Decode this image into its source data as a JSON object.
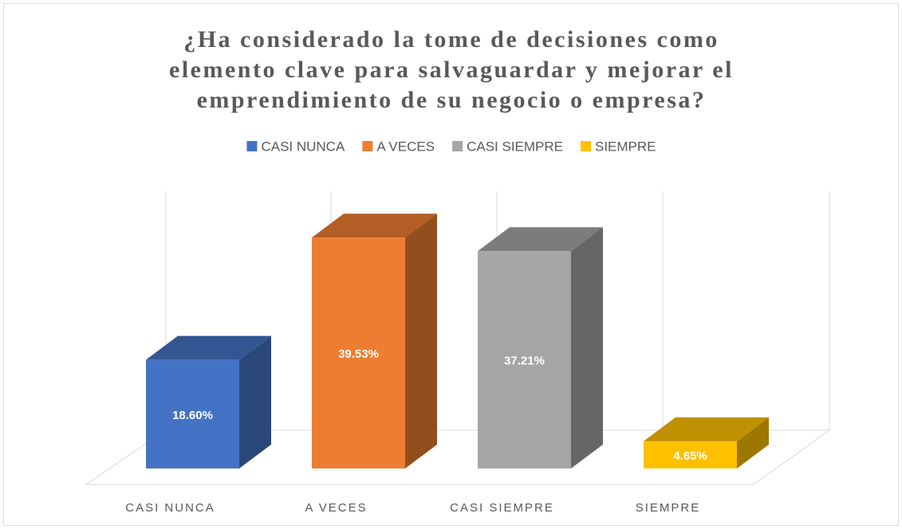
{
  "chart_data": {
    "type": "bar3d",
    "title": [
      "¿Ha considerado la tome de decisiones como",
      "elemento clave para salvaguardar y mejorar el",
      "emprendimiento de su negocio o empresa?"
    ],
    "categories": [
      "CASI NUNCA",
      "A VECES",
      "CASI SIEMPRE",
      "SIEMPRE"
    ],
    "values": [
      18.6,
      39.53,
      37.21,
      4.65
    ],
    "value_labels": [
      "18.60%",
      "39.53%",
      "37.21%",
      "4.65%"
    ],
    "colors": [
      "#4472c4",
      "#ed7d31",
      "#a5a5a5",
      "#ffc000"
    ],
    "legend": true,
    "legend_position": "top"
  }
}
